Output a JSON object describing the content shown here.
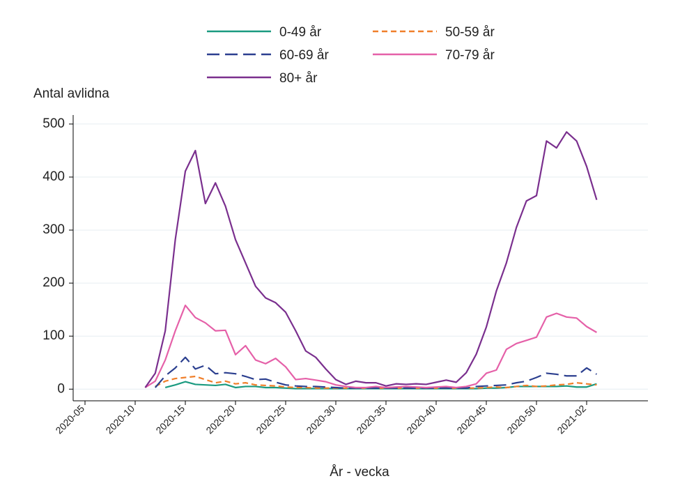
{
  "chart_data": {
    "type": "line",
    "y_label": "Antal avlidna",
    "x_label": "År - vecka",
    "categories": [
      null,
      "2020-05",
      null,
      null,
      null,
      null,
      "2020-10",
      null,
      null,
      null,
      null,
      "2020-15",
      null,
      null,
      null,
      null,
      "2020-20",
      null,
      null,
      null,
      null,
      "2020-25",
      null,
      null,
      null,
      null,
      "2020-30",
      null,
      null,
      null,
      null,
      "2020-35",
      null,
      null,
      null,
      null,
      "2020-40",
      null,
      null,
      null,
      null,
      "2020-45",
      null,
      null,
      null,
      null,
      "2020-50",
      null,
      null,
      null,
      null,
      "2021-02",
      null,
      null,
      null,
      null,
      null,
      null
    ],
    "ylim": [
      -22,
      517
    ],
    "yticks": [
      0,
      100,
      200,
      300,
      400,
      500
    ],
    "grid": true,
    "legend": "top",
    "series": [
      {
        "name": "0-49 år",
        "color": "#1a9a80",
        "dash": "solid",
        "values": [
          null,
          null,
          null,
          null,
          null,
          null,
          null,
          null,
          null,
          3,
          8,
          14,
          9,
          8,
          7,
          9,
          3,
          5,
          5,
          3,
          3,
          2,
          1,
          1,
          1,
          1,
          1,
          1,
          1,
          1,
          1,
          1,
          1,
          1,
          1,
          1,
          1,
          1,
          1,
          1,
          1,
          2,
          2,
          3,
          5,
          5,
          5,
          5,
          5,
          6,
          4,
          4,
          10,
          null,
          null,
          null,
          null,
          null
        ]
      },
      {
        "name": "50-59 år",
        "color": "#f07f2a",
        "dash": "short-dash",
        "values": [
          null,
          null,
          null,
          null,
          null,
          null,
          null,
          null,
          5,
          15,
          20,
          22,
          24,
          18,
          12,
          15,
          10,
          12,
          8,
          7,
          6,
          4,
          3,
          3,
          2,
          2,
          2,
          2,
          2,
          2,
          2,
          2,
          2,
          2,
          2,
          2,
          2,
          2,
          2,
          2,
          2,
          3,
          4,
          3,
          5,
          7,
          5,
          6,
          8,
          9,
          12,
          10,
          8,
          null,
          null,
          null,
          null,
          null
        ]
      },
      {
        "name": "60-69 år",
        "color": "#2b3f8f",
        "dash": "long-dash",
        "values": [
          null,
          null,
          null,
          null,
          null,
          null,
          null,
          null,
          3,
          25,
          40,
          60,
          38,
          45,
          29,
          31,
          29,
          24,
          18,
          19,
          13,
          8,
          6,
          5,
          5,
          4,
          3,
          2,
          2,
          2,
          2,
          2,
          2,
          2,
          2,
          2,
          2,
          2,
          2,
          2,
          5,
          6,
          7,
          8,
          12,
          15,
          22,
          30,
          28,
          25,
          25,
          40,
          28,
          null,
          null,
          null,
          null,
          null
        ]
      },
      {
        "name": "70-79 år",
        "color": "#e560a8",
        "dash": "solid",
        "values": [
          null,
          null,
          null,
          null,
          null,
          null,
          null,
          3,
          15,
          55,
          110,
          158,
          135,
          125,
          110,
          111,
          65,
          82,
          55,
          48,
          58,
          42,
          18,
          20,
          17,
          14,
          8,
          5,
          3,
          3,
          5,
          3,
          4,
          5,
          4,
          3,
          4,
          5,
          3,
          5,
          10,
          30,
          36,
          75,
          86,
          92,
          98,
          136,
          143,
          136,
          134,
          118,
          107,
          null,
          null,
          null,
          null,
          null
        ]
      },
      {
        "name": "80+ år",
        "color": "#7a2f8e",
        "dash": "solid",
        "values": [
          null,
          null,
          null,
          null,
          null,
          null,
          null,
          3,
          30,
          110,
          282,
          411,
          450,
          350,
          389,
          345,
          282,
          238,
          194,
          172,
          163,
          145,
          110,
          72,
          60,
          38,
          18,
          9,
          15,
          12,
          12,
          6,
          10,
          9,
          10,
          9,
          13,
          17,
          13,
          31,
          66,
          117,
          185,
          238,
          305,
          355,
          365,
          468,
          455,
          485,
          468,
          420,
          357,
          null,
          null,
          null,
          null,
          null
        ]
      }
    ]
  }
}
